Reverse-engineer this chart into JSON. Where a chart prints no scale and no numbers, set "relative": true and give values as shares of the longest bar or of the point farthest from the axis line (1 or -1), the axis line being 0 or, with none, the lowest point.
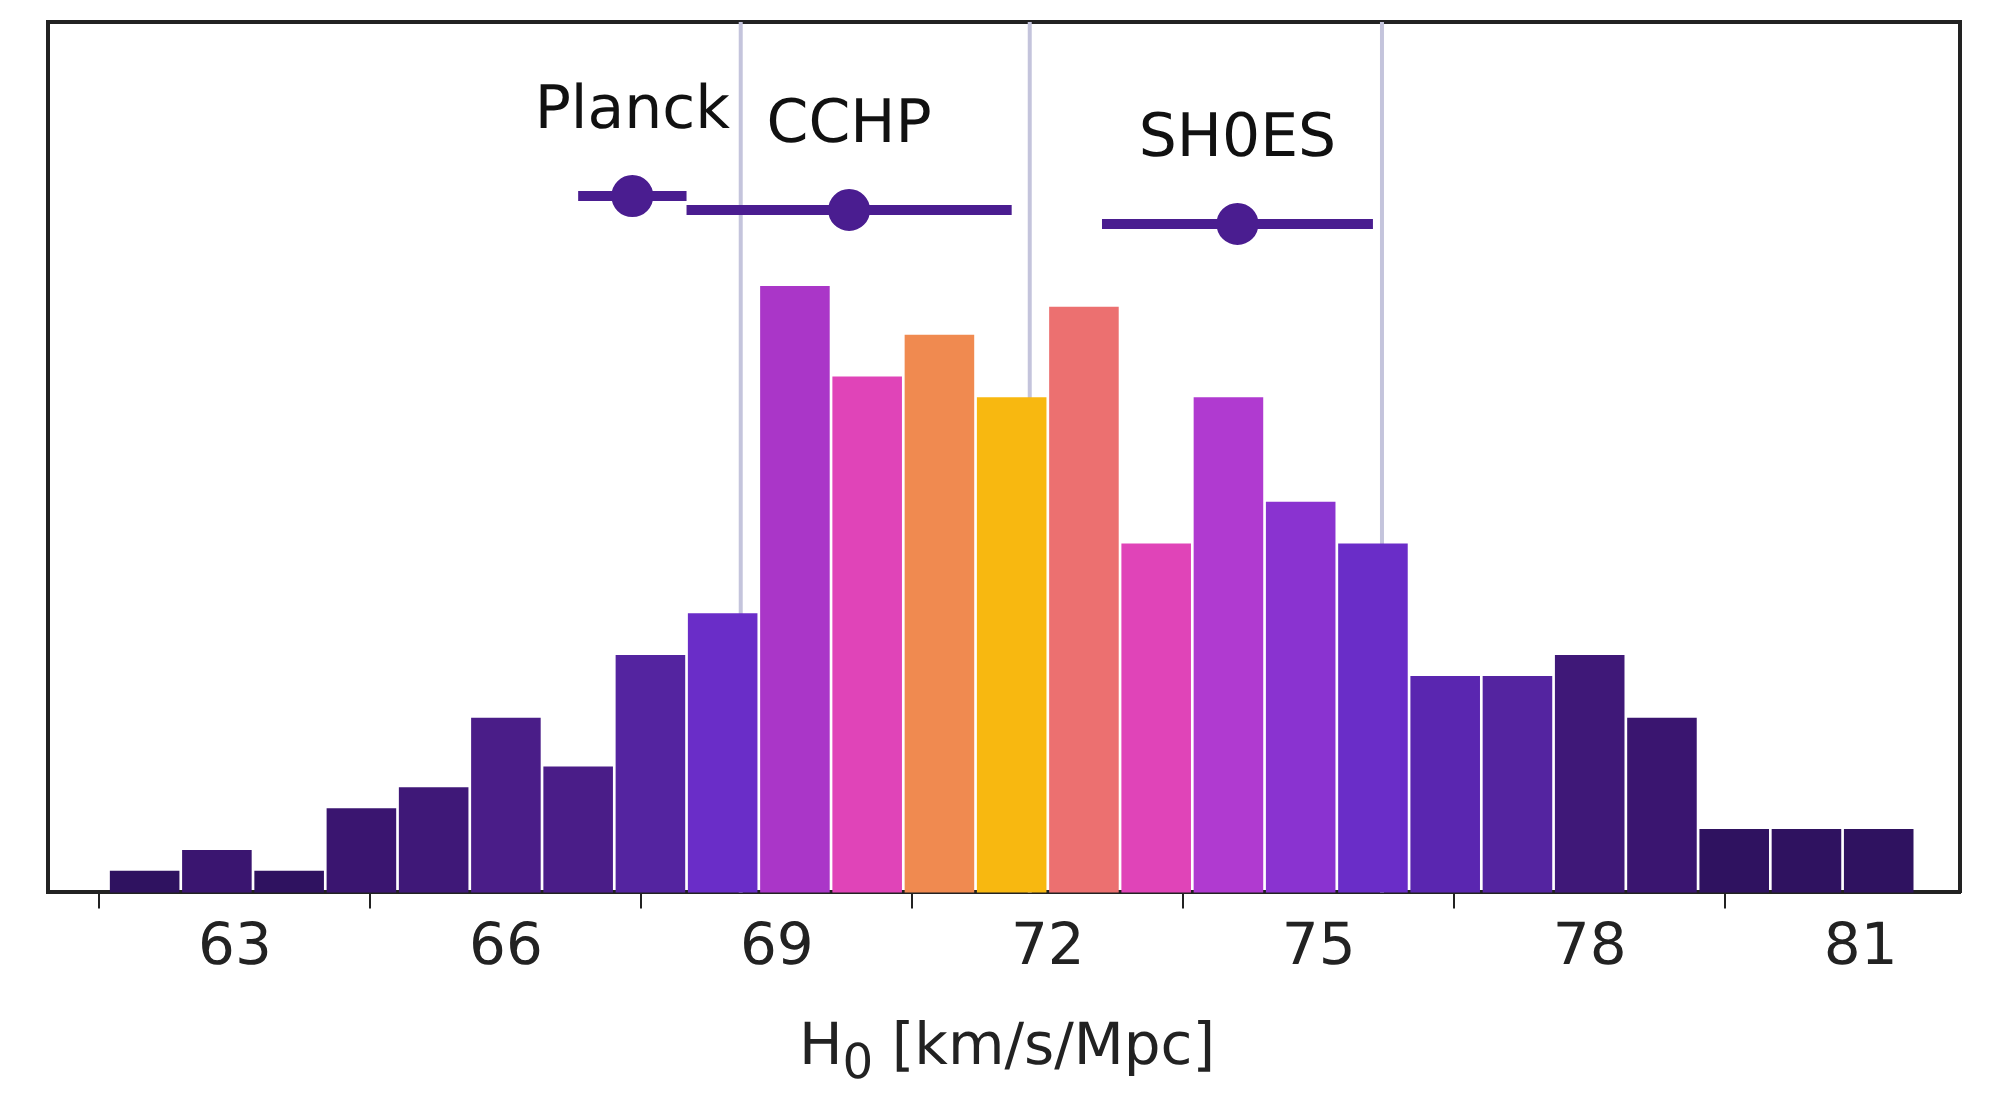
{
  "chart_data": {
    "type": "histogram",
    "relative": true,
    "xlabel": "H$_{0}$ [km/s/Mpc]",
    "xlim": [
      60.93,
      82.1
    ],
    "xticks": [
      63,
      66,
      69,
      72,
      75,
      78,
      81
    ],
    "grid": false,
    "legend": false,
    "series": [
      {
        "bins": [
          61.6,
          62.4,
          63.2,
          64.0,
          64.8,
          65.6,
          66.4,
          67.2,
          68.0,
          68.8,
          69.6,
          70.4,
          71.2,
          72.0,
          72.8,
          73.6,
          74.4,
          75.2,
          76.0,
          76.8,
          77.6,
          78.4,
          79.2,
          80.0,
          80.8,
          81.6
        ],
        "values": [
          0.03,
          0.06,
          0.03,
          0.12,
          0.15,
          0.25,
          0.18,
          0.34,
          0.4,
          0.87,
          0.74,
          0.8,
          0.71,
          0.84,
          0.5,
          0.71,
          0.56,
          0.5,
          0.31,
          0.31,
          0.34,
          0.25,
          0.09,
          0.09,
          0.09
        ],
        "colors": [
          "#2f1260",
          "#3a1570",
          "#2f1260",
          "#3a1570",
          "#3f1878",
          "#4a1d88",
          "#4a1d88",
          "#5424a0",
          "#6a2dc8",
          "#aa36c8",
          "#e044b8",
          "#f08a50",
          "#f8b810",
          "#ec7070",
          "#e044b8",
          "#b03ad0",
          "#8a33d0",
          "#6a2dc8",
          "#5a26b0",
          "#5424a0",
          "#3f1878",
          "#3a1570",
          "#2f1260",
          "#2f1260",
          "#2f1260"
        ]
      },
      {
        "type": "scatter",
        "color": "#4a1d90",
        "marker": "circle",
        "x": [
          67.4,
          69.8,
          74.1
        ],
        "values": [
          1,
          0.98,
          0.96
        ],
        "xerrors": [
          [
            66.8,
            68.0
          ],
          [
            68.0,
            71.6
          ],
          [
            72.6,
            75.6
          ]
        ]
      }
    ],
    "ref_lines": [
      {
        "axis": "x",
        "value": 68.6,
        "color": "#c4c4dc"
      },
      {
        "axis": "x",
        "value": 71.8,
        "color": "#c4c4dc"
      },
      {
        "axis": "x",
        "value": 75.7,
        "color": "#c4c4dc"
      }
    ],
    "annotations": [
      "Planck",
      "CCHP",
      "SH0ES"
    ]
  }
}
